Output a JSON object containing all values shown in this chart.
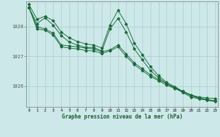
{
  "title": "Graphe pression niveau de la mer (hPa)",
  "bg_color": "#cce8e8",
  "grid_color": "#aacccc",
  "line_color": "#1a6b3a",
  "xlim": [
    -0.3,
    23.3
  ],
  "ylim": [
    1025.3,
    1028.85
  ],
  "yticks": [
    1026,
    1027,
    1028
  ],
  "xticks": [
    0,
    1,
    2,
    3,
    4,
    5,
    6,
    7,
    8,
    9,
    10,
    11,
    12,
    13,
    14,
    15,
    16,
    17,
    18,
    19,
    20,
    21,
    22,
    23
  ],
  "series": [
    [
      1028.75,
      1028.25,
      1028.35,
      1028.2,
      1027.82,
      1027.62,
      1027.5,
      1027.42,
      1027.38,
      1027.28,
      1028.05,
      1028.55,
      1028.1,
      1027.45,
      1027.05,
      1026.65,
      1026.35,
      1026.12,
      1025.98,
      1025.82,
      1025.7,
      1025.63,
      1025.6,
      1025.58
    ],
    [
      1028.65,
      1028.1,
      1028.3,
      1028.05,
      1027.7,
      1027.48,
      1027.38,
      1027.3,
      1027.3,
      1027.18,
      1027.92,
      1028.28,
      1027.82,
      1027.25,
      1026.88,
      1026.52,
      1026.28,
      1026.08,
      1025.93,
      1025.78,
      1025.63,
      1025.57,
      1025.53,
      1025.5
    ],
    [
      1028.65,
      1028.0,
      1027.92,
      1027.78,
      1027.38,
      1027.35,
      1027.32,
      1027.28,
      1027.25,
      1027.15,
      1027.22,
      1027.38,
      1027.08,
      1026.78,
      1026.58,
      1026.38,
      1026.22,
      1026.08,
      1025.95,
      1025.82,
      1025.7,
      1025.6,
      1025.55,
      1025.5
    ],
    [
      1028.65,
      1027.92,
      1027.88,
      1027.72,
      1027.32,
      1027.28,
      1027.25,
      1027.2,
      1027.18,
      1027.1,
      1027.18,
      1027.32,
      1027.0,
      1026.72,
      1026.52,
      1026.32,
      1026.18,
      1026.03,
      1025.92,
      1025.8,
      1025.68,
      1025.58,
      1025.52,
      1025.48
    ]
  ]
}
